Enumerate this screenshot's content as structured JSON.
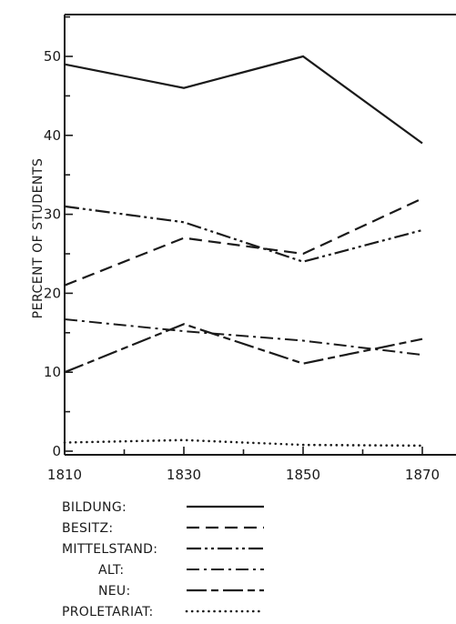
{
  "chart_data": {
    "type": "line",
    "title": "",
    "xlabel": "",
    "ylabel": "PERCENT OF STUDENTS",
    "x": [
      1810,
      1830,
      1850,
      1870
    ],
    "xlim": [
      1810,
      1880
    ],
    "ylim": [
      0,
      55
    ],
    "yticks": [
      0,
      10,
      20,
      30,
      40,
      50
    ],
    "grid": false,
    "legend_position": "bottom",
    "series": [
      {
        "name": "BILDUNG:",
        "style": "solid",
        "values": [
          49,
          46,
          50,
          39
        ]
      },
      {
        "name": "BESITZ:",
        "style": "dashed",
        "values": [
          21,
          27,
          25,
          32
        ]
      },
      {
        "name": "MITTELSTAND:",
        "style": "dash-dot-dot",
        "values": [
          31,
          29,
          24,
          28
        ]
      },
      {
        "name": "ALT:",
        "style": "dash-dot",
        "values": [
          16.7,
          15.2,
          14,
          12.2
        ]
      },
      {
        "name": "NEU:",
        "style": "long-dash-short-dash",
        "values": [
          10,
          16.1,
          11.1,
          14.2
        ]
      },
      {
        "name": "PROLETARIAT:",
        "style": "dotted",
        "values": [
          1.1,
          1.4,
          0.8,
          0.7
        ]
      }
    ],
    "color": "#1a1a1a"
  }
}
